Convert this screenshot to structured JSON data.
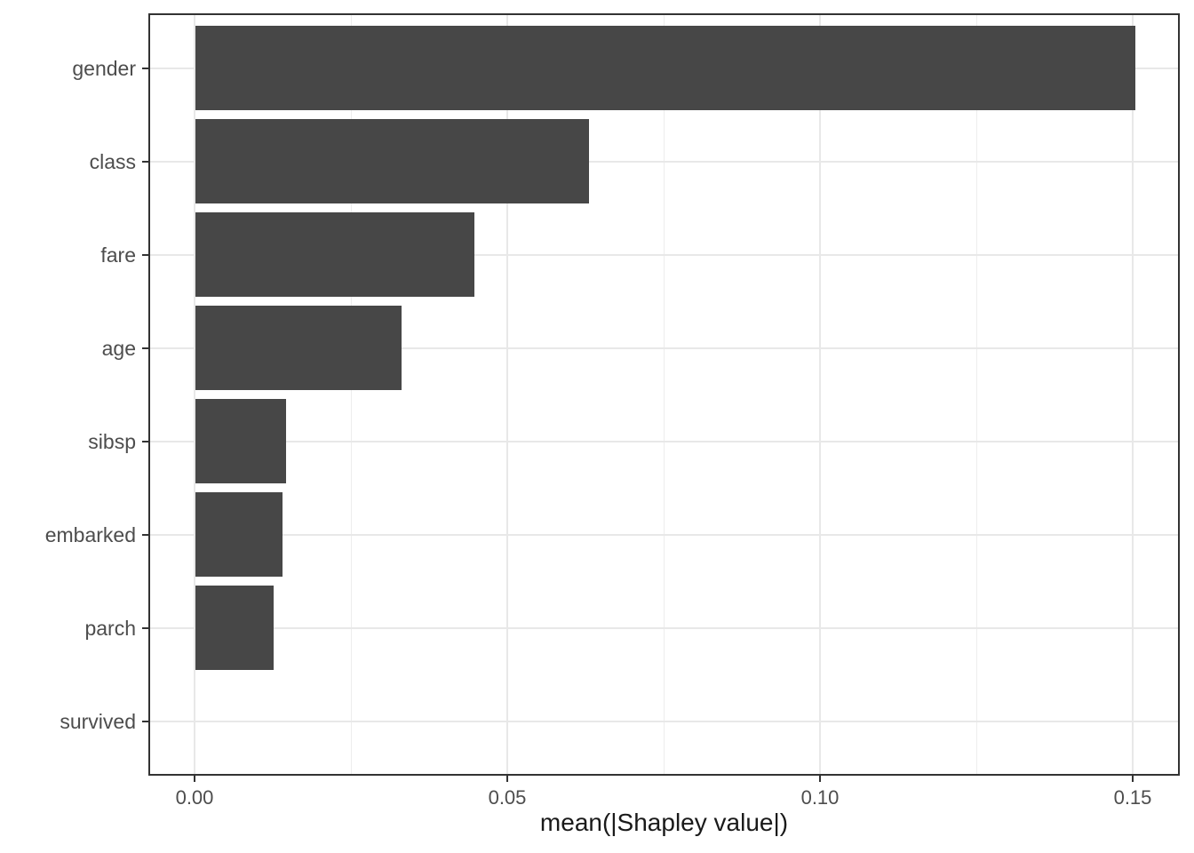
{
  "chart_data": {
    "type": "bar",
    "orientation": "horizontal",
    "title": "",
    "xlabel": "mean(|Shapley value|)",
    "ylabel": "",
    "categories": [
      "gender",
      "class",
      "fare",
      "age",
      "sibsp",
      "embarked",
      "parch",
      "survived"
    ],
    "values": [
      0.1503,
      0.0629,
      0.0446,
      0.033,
      0.0145,
      0.0139,
      0.0125,
      0.0
    ],
    "x_ticks": [
      {
        "value": 0.0,
        "label": "0.00"
      },
      {
        "value": 0.05,
        "label": "0.05"
      },
      {
        "value": 0.1,
        "label": "0.10"
      },
      {
        "value": 0.15,
        "label": "0.15"
      }
    ],
    "x_minor_gridlines": [
      0.025,
      0.075,
      0.125
    ],
    "xlim": [
      -0.0074,
      0.1576
    ],
    "grid": "major and minor vertical, major horizontal per category",
    "legend": "none",
    "colors": {
      "bar_fill": "#474747",
      "grid_major": "#E8E8E8",
      "grid_minor": "#EDEDED",
      "axis_text": "#4D4D4D",
      "axis_title": "#1A1A1A",
      "panel_border": "#333333",
      "tick": "#333333",
      "background": "#FFFFFF"
    }
  }
}
